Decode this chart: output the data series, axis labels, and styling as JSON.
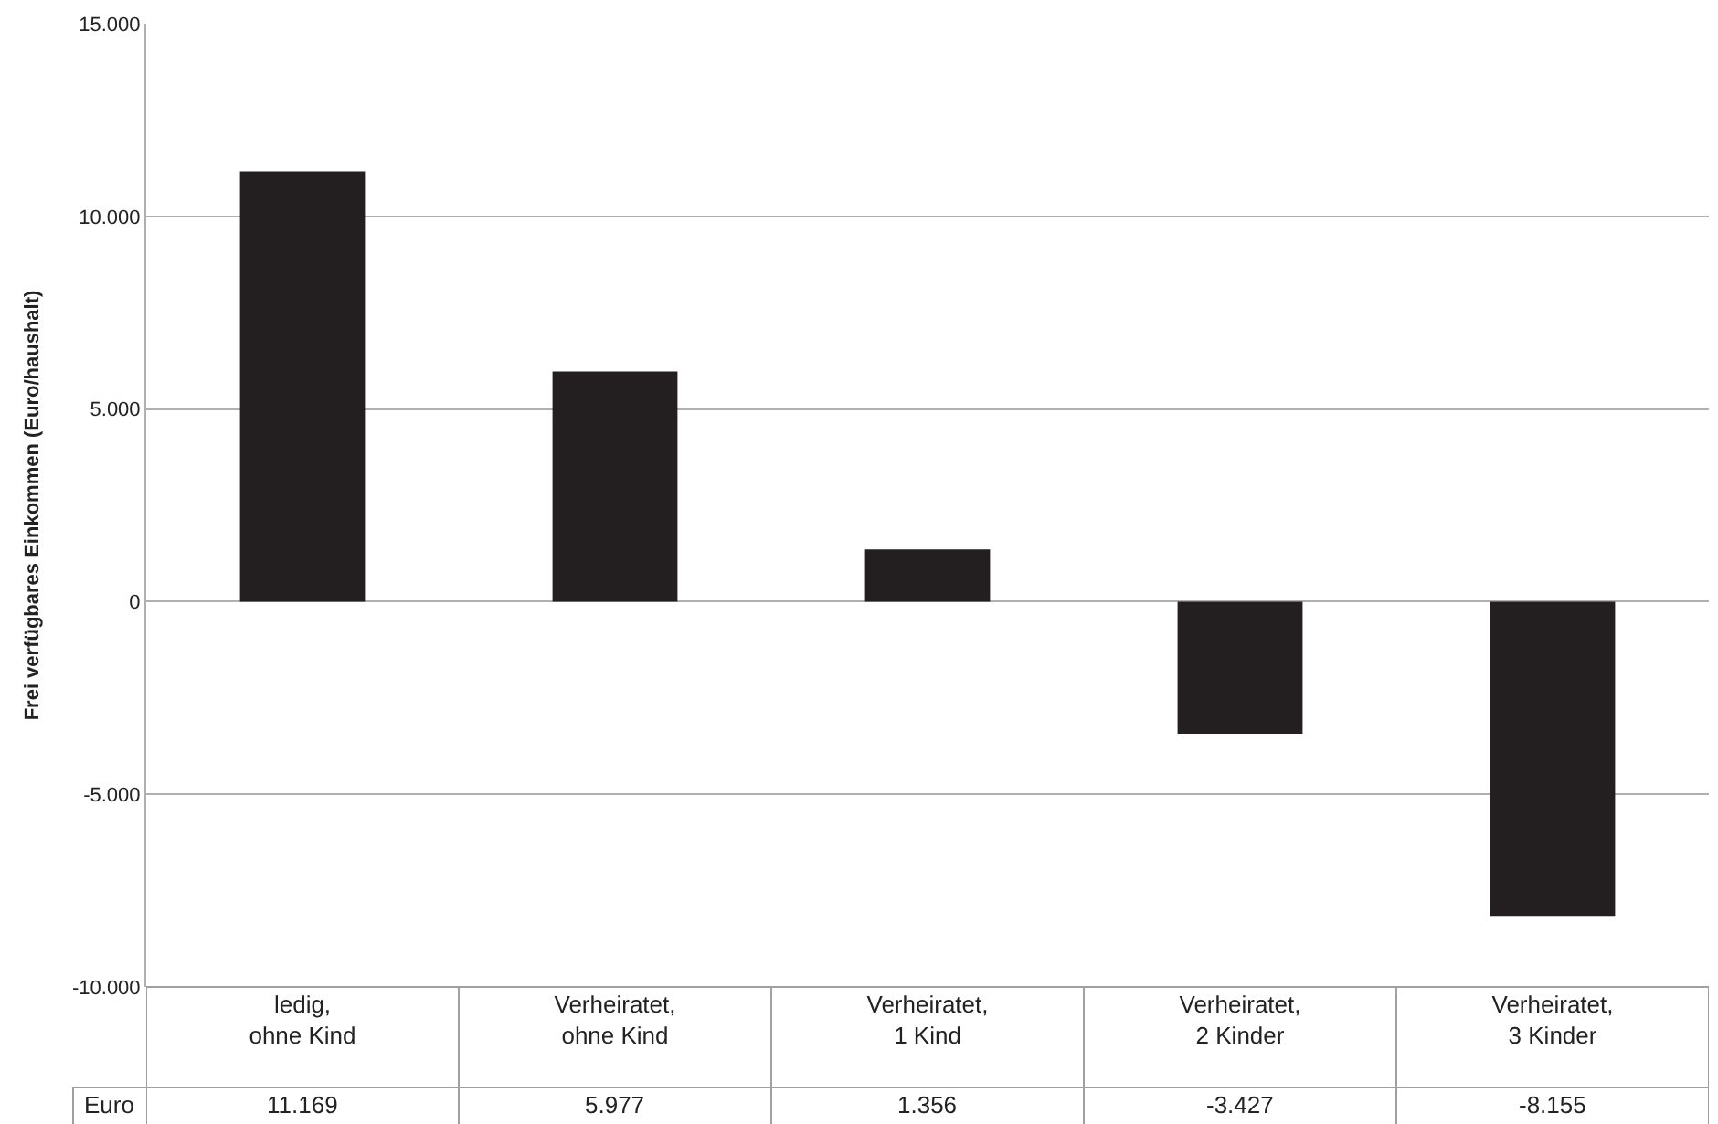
{
  "chart_data": {
    "type": "bar",
    "ylabel": "Frei verfügbares Einkommen (Euro/haushalt)",
    "categories": [
      "ledig,\nohne Kind",
      "Verheiratet,\nohne Kind",
      "Verheiratet,\n1 Kind",
      "Verheiratet,\n2 Kinder",
      "Verheiratet,\n3 Kinder"
    ],
    "series": [
      {
        "name": "Euro",
        "color": "#231f20",
        "values": [
          11169,
          5977,
          1356,
          -3427,
          -8155
        ],
        "value_labels": [
          "11.169",
          "5.977",
          "1.356",
          "-3.427",
          "-8.155"
        ]
      }
    ],
    "ylim": [
      -10000,
      15000
    ],
    "yticks": [
      {
        "value": -10000,
        "label": "-10.000"
      },
      {
        "value": -5000,
        "label": "-5.000"
      },
      {
        "value": 0,
        "label": "0"
      },
      {
        "value": 5000,
        "label": "5.000"
      },
      {
        "value": 10000,
        "label": "10.000"
      },
      {
        "value": 15000,
        "label": "15.000"
      }
    ],
    "grid": "y",
    "legend": false
  }
}
